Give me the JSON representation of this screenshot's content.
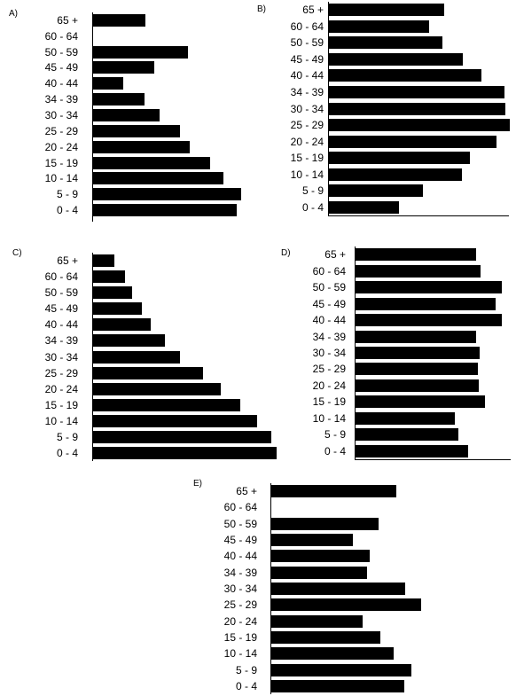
{
  "age_groups": [
    "0 - 4",
    "5 - 9",
    "10 - 14",
    "15 - 19",
    "20 - 24",
    "25 - 29",
    "30 - 34",
    "34 - 39",
    "40 - 44",
    "45 - 49",
    "50 - 59",
    "60 - 64",
    "65 +"
  ],
  "chart_data": [
    {
      "type": "bar",
      "orientation": "horizontal",
      "panel": "A)",
      "categories": [
        "0 - 4",
        "5 - 9",
        "10 - 14",
        "15 - 19",
        "20 - 24",
        "25 - 29",
        "30 - 34",
        "34 - 39",
        "40 - 44",
        "45 - 49",
        "50 - 59",
        "60 - 64",
        "65 +"
      ],
      "values": [
        163,
        168,
        148,
        133,
        110,
        99,
        76,
        59,
        35,
        70,
        108,
        0,
        60
      ],
      "bar_color": "#000000",
      "grid": false
    },
    {
      "type": "bar",
      "orientation": "horizontal",
      "panel": "B)",
      "categories": [
        "0 - 4",
        "5 - 9",
        "10 - 14",
        "15 - 19",
        "20 - 24",
        "25 - 29",
        "30 - 34",
        "34 - 39",
        "40 - 44",
        "45 - 49",
        "50 - 59",
        "60 - 64",
        "65 +"
      ],
      "values": [
        80,
        107,
        151,
        160,
        190,
        205,
        200,
        199,
        173,
        152,
        129,
        114,
        131
      ],
      "bar_color": "#000000",
      "grid": false
    },
    {
      "type": "bar",
      "orientation": "horizontal",
      "panel": "C)",
      "categories": [
        "0 - 4",
        "5 - 9",
        "10 - 14",
        "15 - 19",
        "20 - 24",
        "25 - 29",
        "30 - 34",
        "34 - 39",
        "40 - 44",
        "45 - 49",
        "50 - 59",
        "60 - 64",
        "65 +"
      ],
      "values": [
        208,
        202,
        186,
        167,
        145,
        125,
        99,
        82,
        66,
        56,
        45,
        37,
        25
      ],
      "bar_color": "#000000",
      "grid": false
    },
    {
      "type": "bar",
      "orientation": "horizontal",
      "panel": "D)",
      "categories": [
        "0 - 4",
        "5 - 9",
        "10 - 14",
        "15 - 19",
        "20 - 24",
        "25 - 29",
        "30 - 34",
        "34 - 39",
        "40 - 44",
        "45 - 49",
        "50 - 59",
        "60 - 64",
        "65 +"
      ],
      "values": [
        128,
        117,
        113,
        147,
        140,
        139,
        141,
        137,
        166,
        159,
        166,
        142,
        137
      ],
      "bar_color": "#000000",
      "grid": false
    },
    {
      "type": "bar",
      "orientation": "horizontal",
      "panel": "E)",
      "categories": [
        "0 - 4",
        "5 - 9",
        "10 - 14",
        "15 - 19",
        "20 - 24",
        "25 - 29",
        "30 - 34",
        "34 - 39",
        "40 - 44",
        "45 - 49",
        "50 - 59",
        "60 - 64",
        "65 +"
      ],
      "values": [
        151,
        159,
        139,
        124,
        104,
        170,
        152,
        109,
        112,
        93,
        122,
        0,
        142
      ],
      "bar_color": "#000000",
      "grid": false
    }
  ]
}
